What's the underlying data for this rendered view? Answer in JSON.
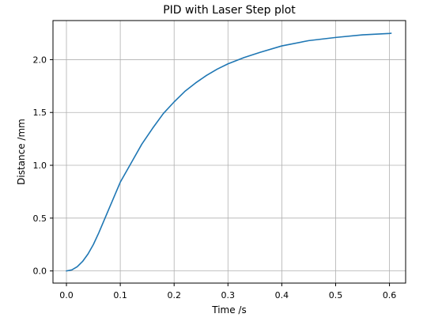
{
  "chart_data": {
    "type": "line",
    "title": "PID with Laser Step plot",
    "xlabel": "Time /s",
    "ylabel": "Distance /mm",
    "xlim": [
      -0.025,
      0.63
    ],
    "ylim": [
      -0.115,
      2.37
    ],
    "x_ticks": [
      0.0,
      0.1,
      0.2,
      0.3,
      0.4,
      0.5,
      0.6
    ],
    "x_tick_labels": [
      "0.0",
      "0.1",
      "0.2",
      "0.3",
      "0.4",
      "0.5",
      "0.6"
    ],
    "y_ticks": [
      0.0,
      0.5,
      1.0,
      1.5,
      2.0
    ],
    "y_tick_labels": [
      "0.0",
      "0.5",
      "1.0",
      "1.5",
      "2.0"
    ],
    "grid": true,
    "series": [
      {
        "color": "#1f77b4",
        "x": [
          0.0,
          0.01,
          0.02,
          0.03,
          0.04,
          0.05,
          0.06,
          0.08,
          0.1,
          0.12,
          0.14,
          0.16,
          0.18,
          0.2,
          0.22,
          0.24,
          0.26,
          0.28,
          0.3,
          0.33,
          0.36,
          0.4,
          0.45,
          0.5,
          0.55,
          0.6,
          0.603
        ],
        "y": [
          0.0,
          0.01,
          0.04,
          0.09,
          0.16,
          0.25,
          0.36,
          0.6,
          0.84,
          1.02,
          1.2,
          1.35,
          1.49,
          1.6,
          1.7,
          1.78,
          1.85,
          1.91,
          1.96,
          2.02,
          2.07,
          2.13,
          2.18,
          2.21,
          2.235,
          2.248,
          2.25
        ]
      }
    ]
  }
}
